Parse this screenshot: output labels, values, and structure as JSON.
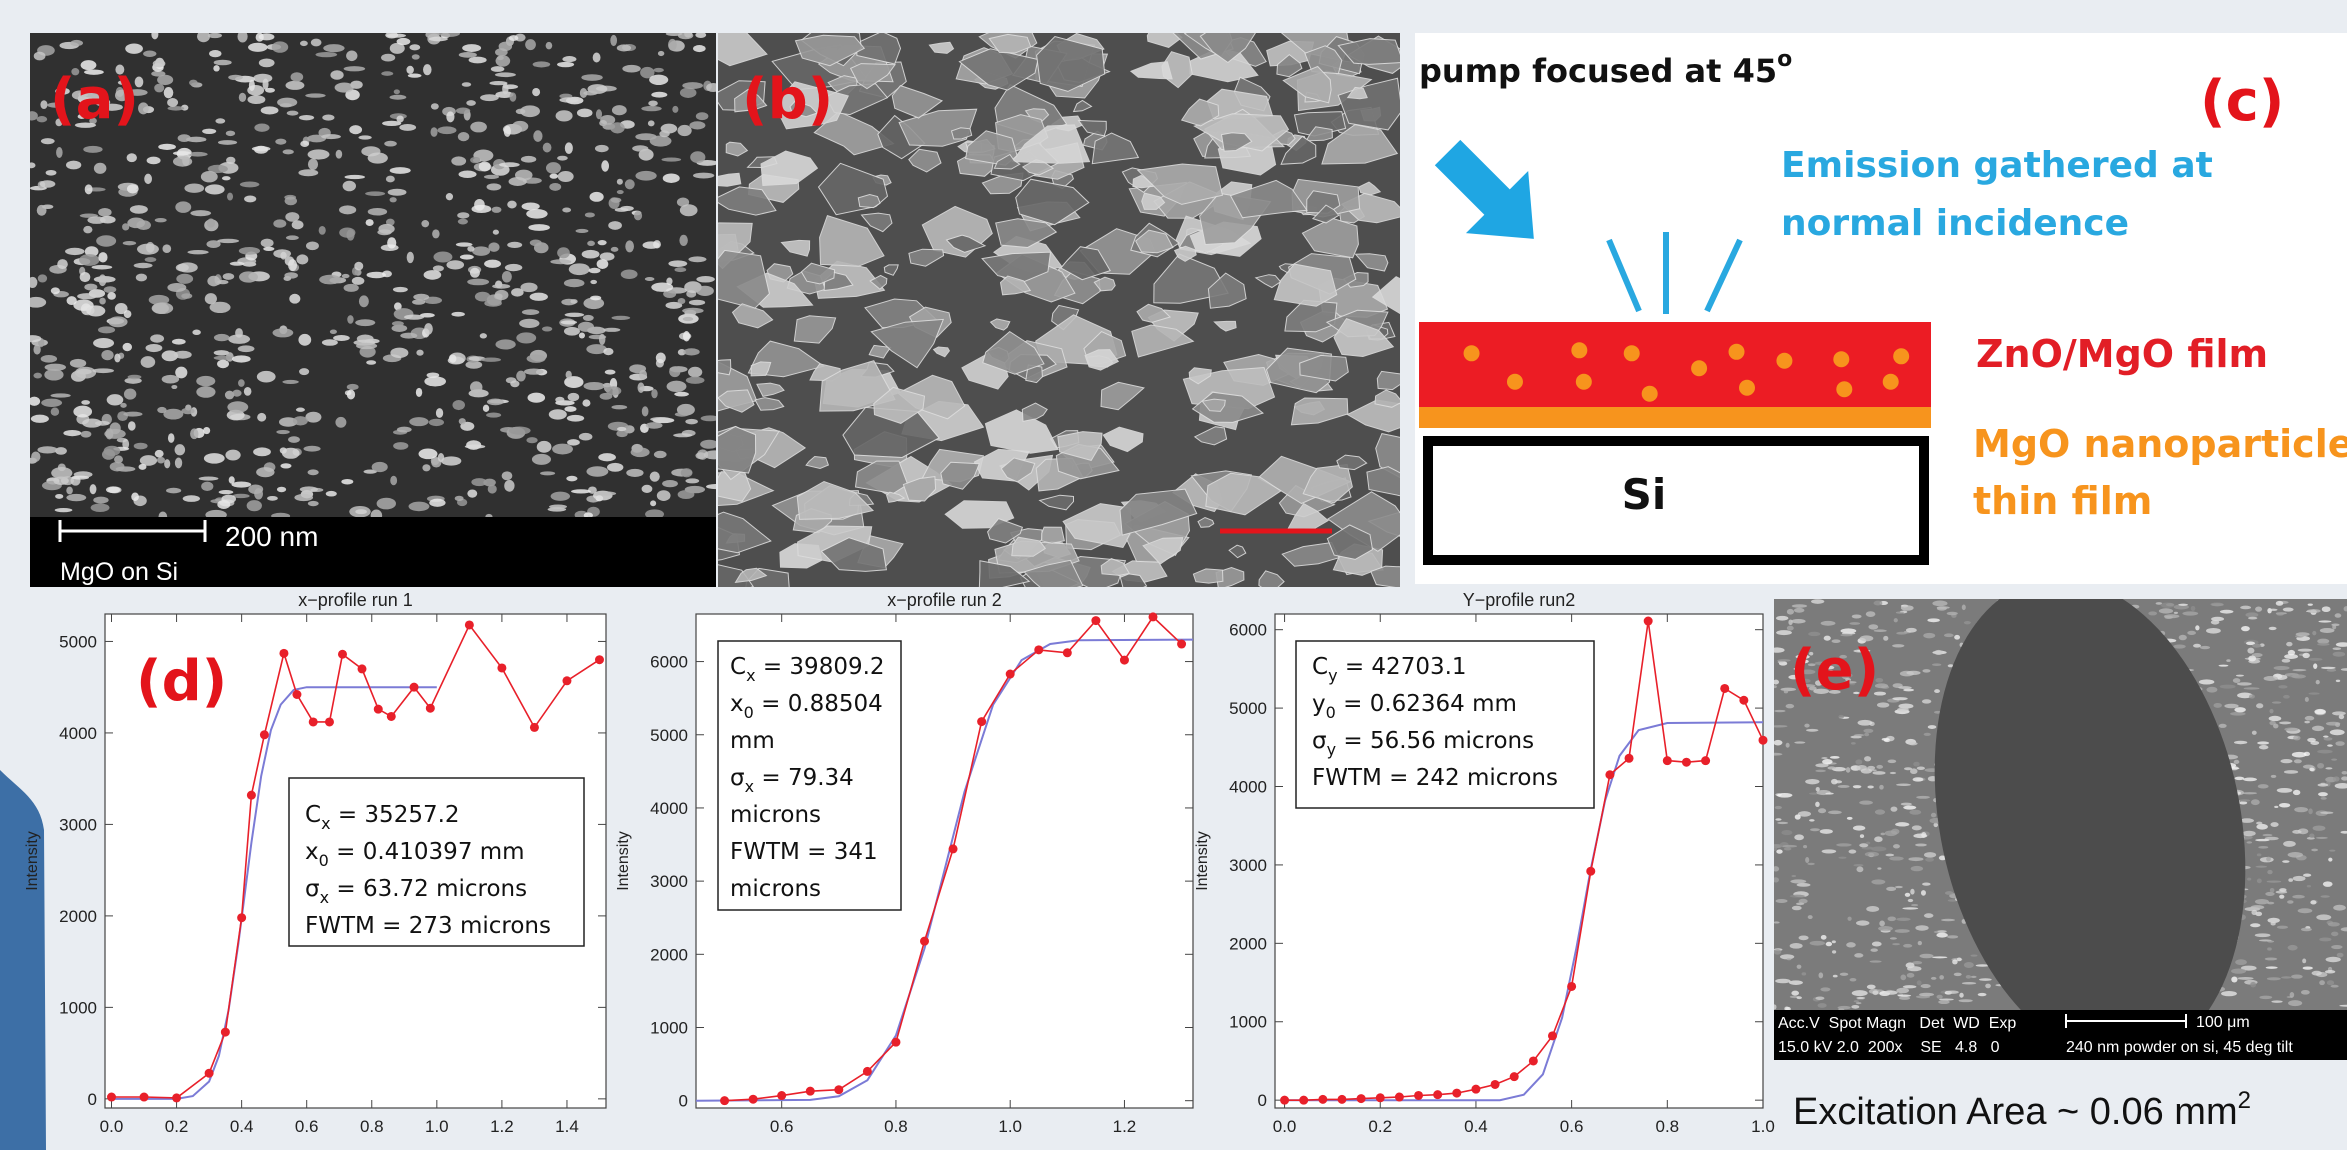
{
  "panels": {
    "a": {
      "label": "(a)",
      "scale": "200 nm",
      "caption": "MgO on Si"
    },
    "b": {
      "label": "(b)"
    },
    "c": {
      "label": "(c)",
      "pump": "pump focused at 45",
      "pump_sup": "o",
      "emission": [
        "Emission gathered at",
        "normal incidence"
      ],
      "film": "ZnO/MgO film",
      "nano": [
        "MgO nanoparticle",
        "thin film"
      ],
      "substrate": "Si"
    },
    "d": {
      "label": "(d)"
    },
    "e": {
      "label": "(e)",
      "info_head": "Acc.V  Spot Magn   Det  WD  Exp",
      "info_vals": "15.0 kV 2.0  200x    SE   4.8   0",
      "scale": "100 μm",
      "note": "240 nm powder on si, 45 deg tilt",
      "area": "Excitation Area ~ 0.06 mm",
      "area_sup": "2"
    }
  },
  "chart_data": [
    {
      "type": "line",
      "title": "x−profile run 1",
      "ylabel": "Intensity",
      "xlim": [
        -0.02,
        1.52
      ],
      "xticks": [
        {
          "value": 0,
          "label": "0.0"
        },
        0.2,
        0.4,
        0.6,
        0.8,
        {
          "value": 1,
          "label": "1.0"
        },
        1.2,
        1.4
      ],
      "ylim": [
        -100,
        5300
      ],
      "yticks": [
        0,
        1000,
        2000,
        3000,
        4000,
        5000
      ],
      "series": [
        {
          "color": "#e8202a",
          "markers": true,
          "x": [
            0,
            0.1,
            0.2,
            0.3,
            0.35,
            0.4,
            0.43,
            0.47,
            0.53,
            0.57,
            0.62,
            0.67,
            0.71,
            0.77,
            0.82,
            0.86,
            0.93,
            0.98,
            1.1,
            1.2,
            1.3,
            1.4,
            1.5
          ],
          "values": [
            20,
            20,
            10,
            280,
            730,
            1980,
            3320,
            3980,
            4870,
            4420,
            4120,
            4120,
            4860,
            4700,
            4260,
            4180,
            4500,
            4270,
            5180,
            4710,
            4060,
            4570,
            4800
          ]
        },
        {
          "color": "#7b7bd6",
          "markers": false,
          "x": [
            0,
            0.2,
            0.25,
            0.3,
            0.33,
            0.36,
            0.39,
            0.41,
            0.43,
            0.46,
            0.49,
            0.52,
            0.56,
            0.6,
            1.0
          ],
          "values": [
            0,
            0,
            30,
            190,
            470,
            970,
            1700,
            2250,
            2800,
            3530,
            4030,
            4310,
            4470,
            4500,
            4500
          ]
        }
      ],
      "annotation": [
        {
          "text": "C",
          "sub": "x",
          "rest": " = 35257.2"
        },
        {
          "text": "x",
          "sub": "0",
          "rest": " = 0.410397 mm"
        },
        {
          "text": "σ",
          "sub": "x",
          "rest": " = 63.72 microns"
        },
        {
          "text": "FWTM = 273 microns"
        }
      ]
    },
    {
      "type": "line",
      "title": "x−profile run 2",
      "ylabel": "Intensity",
      "xlim": [
        0.45,
        1.32
      ],
      "xticks": [
        0.6,
        0.8,
        {
          "value": 1,
          "label": "1.0"
        },
        1.2
      ],
      "ylim": [
        -100,
        6650
      ],
      "yticks": [
        0,
        1000,
        2000,
        3000,
        4000,
        5000,
        6000
      ],
      "series": [
        {
          "color": "#e8202a",
          "markers": true,
          "x": [
            0.5,
            0.55,
            0.6,
            0.65,
            0.7,
            0.75,
            0.8,
            0.85,
            0.9,
            0.95,
            1.0,
            1.05,
            1.1,
            1.15,
            1.2,
            1.25,
            1.3
          ],
          "values": [
            0,
            20,
            70,
            130,
            150,
            400,
            800,
            2180,
            3440,
            5180,
            5830,
            6160,
            6120,
            6560,
            6020,
            6610,
            6240
          ]
        },
        {
          "color": "#7b7bd6",
          "markers": false,
          "x": [
            0.45,
            0.65,
            0.7,
            0.75,
            0.8,
            0.85,
            0.885,
            0.92,
            0.97,
            1.02,
            1.07,
            1.12,
            1.32
          ],
          "values": [
            0,
            10,
            60,
            280,
            890,
            2080,
            3150,
            4220,
            5410,
            6020,
            6240,
            6290,
            6300
          ]
        }
      ],
      "annotation": [
        {
          "text": "C",
          "sub": "x",
          "rest": " = 39809.2"
        },
        {
          "text": "x",
          "sub": "0",
          "rest": " = 0.88504"
        },
        {
          "text": "mm"
        },
        {
          "text": "σ",
          "sub": "x",
          "rest": " = 79.34"
        },
        {
          "text": "microns"
        },
        {
          "text": "FWTM = 341"
        },
        {
          "text": "microns"
        }
      ]
    },
    {
      "type": "line",
      "title": "Y−profile run2",
      "ylabel": "Intensity",
      "xlim": [
        -0.02,
        1.0
      ],
      "xticks": [
        {
          "value": 0,
          "label": "0.0"
        },
        0.2,
        0.4,
        0.6,
        0.8,
        {
          "value": 1,
          "label": "1.0"
        }
      ],
      "ylim": [
        -100,
        6200
      ],
      "yticks": [
        0,
        1000,
        2000,
        3000,
        4000,
        5000,
        6000
      ],
      "series": [
        {
          "color": "#e8202a",
          "markers": true,
          "x": [
            0,
            0.04,
            0.08,
            0.12,
            0.16,
            0.2,
            0.24,
            0.28,
            0.32,
            0.36,
            0.4,
            0.44,
            0.48,
            0.52,
            0.56,
            0.6,
            0.64,
            0.68,
            0.72,
            0.76,
            0.8,
            0.84,
            0.88,
            0.92,
            0.96,
            1.0
          ],
          "values": [
            0,
            0,
            10,
            10,
            20,
            30,
            40,
            60,
            70,
            90,
            140,
            200,
            300,
            500,
            820,
            1450,
            2920,
            4150,
            4360,
            6110,
            4330,
            4310,
            4330,
            5250,
            5100,
            4590
          ]
        },
        {
          "color": "#7b7bd6",
          "markers": false,
          "x": [
            0,
            0.45,
            0.5,
            0.54,
            0.58,
            0.61,
            0.624,
            0.64,
            0.67,
            0.7,
            0.74,
            0.8,
            1.0
          ],
          "values": [
            0,
            0,
            70,
            330,
            1050,
            1940,
            2410,
            2950,
            3820,
            4390,
            4720,
            4810,
            4820
          ]
        }
      ],
      "annotation": [
        {
          "text": "C",
          "sub": "y",
          "rest": " = 42703.1"
        },
        {
          "text": "y",
          "sub": "0",
          "rest": " = 0.62364 mm"
        },
        {
          "text": "σ",
          "sub": "y",
          "rest": " = 56.56 microns"
        },
        {
          "text": "FWTM = 242 microns"
        }
      ]
    }
  ]
}
